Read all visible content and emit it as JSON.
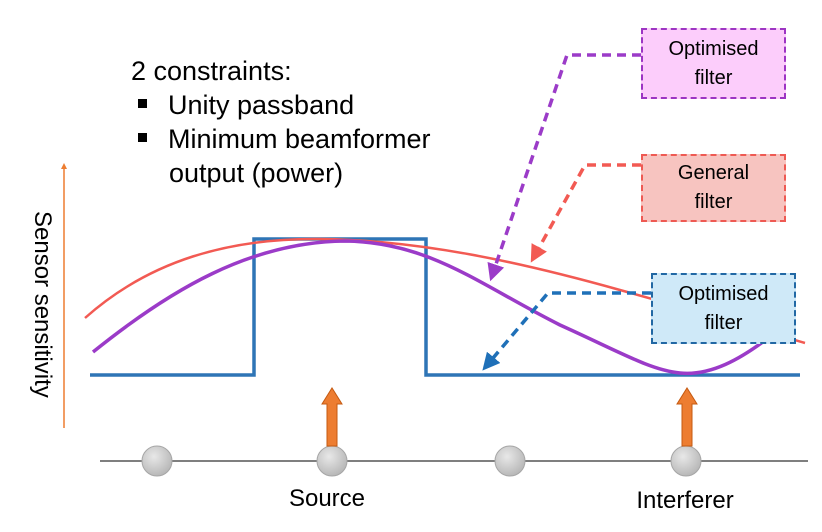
{
  "constraints": {
    "heading": "2 constraints:",
    "items": [
      "Unity passband",
      "Minimum beamformer",
      "output (power)"
    ]
  },
  "callouts": {
    "optimised_filter_pink": "Optimised\nfilter",
    "general_filter": "General\nfilter",
    "optimised_filter_blue": "Optimised\nfilter"
  },
  "axis": {
    "y_label": "Sensor sensitivity"
  },
  "labels": {
    "source": "Source",
    "interferer": "Interferer"
  },
  "colors": {
    "purple_curve": "#9b3bc8",
    "red_curve": "#f25a53",
    "blue_line": "#2e75b6",
    "arrow_orange": "#ed7d31",
    "sensor_gray": "#c8c8c8",
    "baseline_gray": "#7f7f7f"
  },
  "icons": {
    "sensor": "circle",
    "source_arrow": "up-arrow",
    "interferer_arrow": "up-arrow"
  }
}
